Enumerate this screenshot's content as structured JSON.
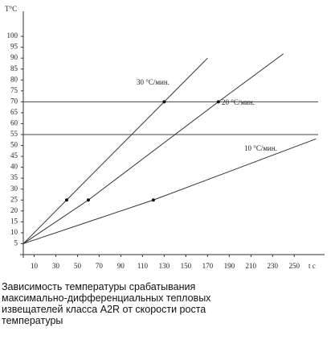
{
  "chart_data": {
    "type": "line",
    "y_label": "T°C",
    "x_label": "t c",
    "xlim": [
      0,
      275
    ],
    "ylim": [
      0,
      110
    ],
    "xticks": [
      10,
      30,
      50,
      70,
      90,
      110,
      130,
      150,
      170,
      190,
      210,
      230,
      250
    ],
    "yticks": [
      5,
      10,
      15,
      20,
      25,
      30,
      35,
      40,
      45,
      50,
      55,
      60,
      65,
      70,
      75,
      80,
      85,
      90,
      95,
      100
    ],
    "hlines": [
      70,
      55
    ],
    "color": "#333333",
    "series": [
      {
        "name": "30 °С/мин.",
        "x": [
          0,
          40,
          130,
          170
        ],
        "values": [
          5,
          25,
          70,
          90
        ]
      },
      {
        "name": "20 °С/мин.",
        "x": [
          0,
          60,
          180,
          240
        ],
        "values": [
          5,
          25,
          70,
          92
        ]
      },
      {
        "name": "10 °С/мин.",
        "x": [
          0,
          120,
          270
        ],
        "values": [
          5,
          25,
          53
        ]
      }
    ],
    "caption": [
      "Зависимость температуры срабатывания",
      "максимально-дифференциальных тепловых",
      "извещателей класса A2R от скорости роста",
      "температуры"
    ]
  }
}
